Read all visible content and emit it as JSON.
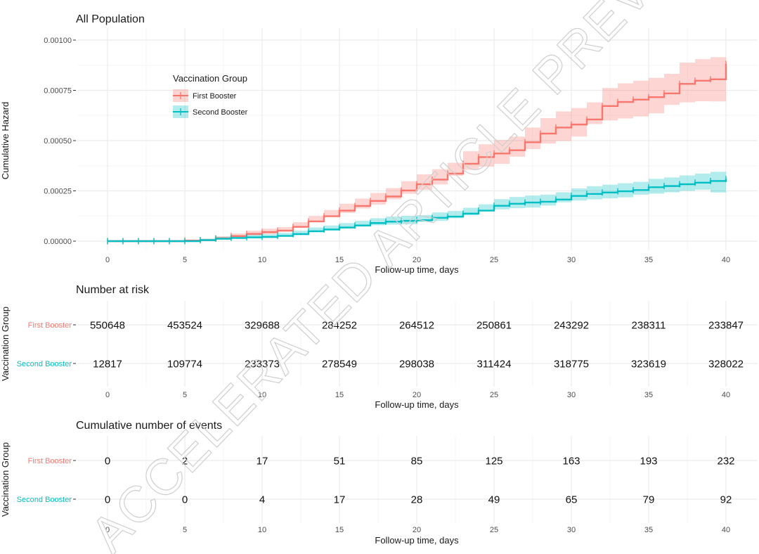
{
  "chart_data": [
    {
      "type": "line",
      "step": true,
      "title": "All Population",
      "xlabel": "Follow-up time, days",
      "ylabel": "Cumulative Hazard",
      "xlim": [
        0,
        40
      ],
      "ylim": [
        0,
        0.001
      ],
      "x_ticks": [
        0,
        5,
        10,
        15,
        20,
        25,
        30,
        35,
        40
      ],
      "y_ticks": [
        0,
        0.00025,
        0.0005,
        0.00075,
        0.001
      ],
      "y_tick_labels": [
        "0.00000",
        "0.00025",
        "0.00050",
        "0.00075",
        "0.00100"
      ],
      "grid": true,
      "legend_title": "Vaccination Group",
      "legend_position": "top-left",
      "x": [
        0,
        1,
        2,
        3,
        4,
        5,
        6,
        7,
        8,
        9,
        10,
        11,
        12,
        13,
        14,
        15,
        16,
        17,
        18,
        19,
        20,
        21,
        22,
        23,
        24,
        25,
        26,
        27,
        28,
        29,
        30,
        31,
        32,
        33,
        34,
        35,
        36,
        37,
        38,
        39,
        40
      ],
      "series": [
        {
          "name": "First Booster",
          "color": "#F8766D",
          "values": [
            0,
            0,
            0,
            0,
            0,
            3e-06,
            5e-06,
            1.4e-05,
            2.5e-05,
            3.6e-05,
            4.5e-05,
            5.2e-05,
            7.1e-05,
            9.8e-05,
            0.000124,
            0.000152,
            0.000175,
            0.0002,
            0.000222,
            0.000252,
            0.000283,
            0.000306,
            0.000336,
            0.000385,
            0.000418,
            0.000436,
            0.000452,
            0.000492,
            0.000535,
            0.000565,
            0.00058,
            0.000605,
            0.000672,
            0.000692,
            0.000704,
            0.000716,
            0.000735,
            0.000782,
            0.000798,
            0.000805,
            0.000882
          ],
          "lower": [
            0,
            0,
            0,
            0,
            0,
            0,
            0,
            6e-06,
            1.4e-05,
            2.2e-05,
            2.9e-05,
            3.5e-05,
            5e-05,
            7.3e-05,
            9.5e-05,
            0.00012,
            0.00014,
            0.000162,
            0.000182,
            0.000208,
            0.000235,
            0.000255,
            0.000282,
            0.000325,
            0.000355,
            0.00037,
            0.000384,
            0.00042,
            0.000458,
            0.000485,
            0.000498,
            0.00052,
            0.000582,
            0.0006,
            0.00061,
            0.00062,
            0.000636,
            0.000678,
            0.00069,
            0.000696,
            0.000695
          ],
          "upper": [
            0,
            0,
            0,
            0,
            2e-06,
            8e-06,
            1.2e-05,
            2.4e-05,
            3.8e-05,
            5.2e-05,
            6.2e-05,
            7e-05,
            9.4e-05,
            0.000125,
            0.000155,
            0.000186,
            0.000212,
            0.00024,
            0.000264,
            0.000298,
            0.000332,
            0.000358,
            0.00039,
            0.000447,
            0.000482,
            0.000503,
            0.00052,
            0.000565,
            0.000612,
            0.000645,
            0.000662,
            0.00069,
            0.000762,
            0.000785,
            0.000798,
            0.000812,
            0.000832,
            0.000888,
            0.000905,
            0.000915,
            0.000925
          ]
        },
        {
          "name": "Second Booster",
          "color": "#00BFC4",
          "values": [
            0,
            0,
            0,
            0,
            0,
            0,
            5e-06,
            1.2e-05,
            1.6e-05,
            1.9e-05,
            2.1e-05,
            2.6e-05,
            3.5e-05,
            4.9e-05,
            5.8e-05,
            6.8e-05,
            7.8e-05,
            9e-05,
            9.7e-05,
            0.000101,
            0.000104,
            0.000116,
            0.000122,
            0.000137,
            0.000152,
            0.000176,
            0.000186,
            0.000192,
            0.000196,
            0.000207,
            0.000225,
            0.000235,
            0.000242,
            0.000248,
            0.000254,
            0.000268,
            0.000274,
            0.000283,
            0.000291,
            0.000299,
            0.000309
          ],
          "lower": [
            0,
            0,
            0,
            0,
            0,
            0,
            0,
            5e-06,
            8e-06,
            1.1e-05,
            1.3e-05,
            1.6e-05,
            2.4e-05,
            3.6e-05,
            4.4e-05,
            5.3e-05,
            6.2e-05,
            7.2e-05,
            7.9e-05,
            8.2e-05,
            8.5e-05,
            9.6e-05,
            0.000101,
            0.000114,
            0.000128,
            0.00015,
            0.000158,
            0.000164,
            0.000167,
            0.000177,
            0.000193,
            0.000202,
            0.000208,
            0.000213,
            0.000218,
            0.000231,
            0.000236,
            0.000243,
            0.00025,
            0.000256,
            0.000242
          ],
          "upper": [
            0,
            0,
            0,
            0,
            0,
            4e-06,
            1.2e-05,
            2.2e-05,
            2.8e-05,
            3.2e-05,
            3.4e-05,
            4.1e-05,
            5.2e-05,
            6.8e-05,
            7.8e-05,
            9e-05,
            0.000101,
            0.000114,
            0.000122,
            0.000126,
            0.000129,
            0.000143,
            0.00015,
            0.000166,
            0.000183,
            0.000209,
            0.00022,
            0.000227,
            0.000231,
            0.000243,
            0.000262,
            0.000273,
            0.000281,
            0.000288,
            0.000295,
            0.00031,
            0.000317,
            0.000327,
            0.000336,
            0.000345,
            0.000365
          ]
        }
      ]
    },
    {
      "type": "table",
      "title": "Number at risk",
      "xlabel": "Follow-up time, days",
      "ylabel": "Vaccination Group",
      "x_ticks": [
        0,
        5,
        10,
        15,
        20,
        25,
        30,
        35,
        40
      ],
      "rows": [
        {
          "name": "First Booster",
          "color": "#F8766D",
          "values": [
            550648,
            453524,
            329688,
            284252,
            264512,
            250861,
            243292,
            238311,
            233847
          ]
        },
        {
          "name": "Second Booster",
          "color": "#00BFC4",
          "values": [
            12817,
            109774,
            233373,
            278549,
            298038,
            311424,
            318775,
            323619,
            328022
          ]
        }
      ]
    },
    {
      "type": "table",
      "title": "Cumulative number of events",
      "xlabel": "Follow-up time, days",
      "ylabel": "Vaccination Group",
      "x_ticks": [
        0,
        5,
        10,
        15,
        20,
        25,
        30,
        35,
        40
      ],
      "rows": [
        {
          "name": "First Booster",
          "color": "#F8766D",
          "values": [
            0,
            2,
            17,
            51,
            85,
            125,
            163,
            193,
            232
          ]
        },
        {
          "name": "Second Booster",
          "color": "#00BFC4",
          "values": [
            0,
            0,
            4,
            17,
            28,
            49,
            65,
            79,
            92
          ]
        }
      ]
    }
  ],
  "watermark": "ACCELERATED ARTICLE PREVIEW",
  "colors": {
    "grid": "#ebebeb",
    "grid_minor": "#f5f5f5",
    "first": "#F8766D",
    "second": "#00BFC4"
  }
}
